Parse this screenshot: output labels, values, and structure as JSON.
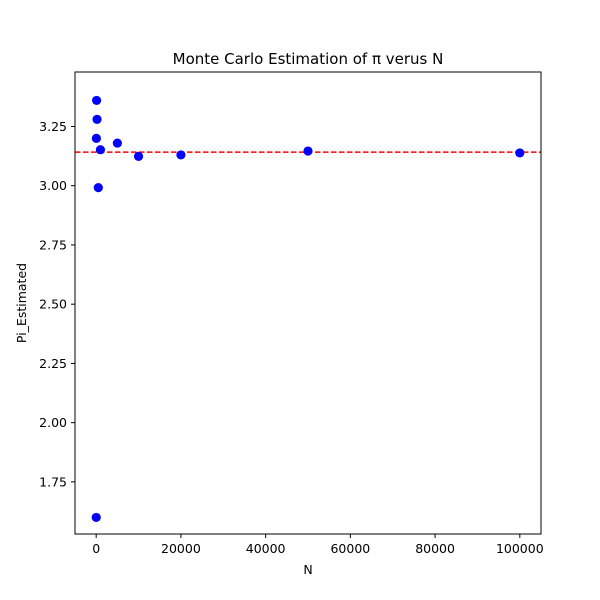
{
  "chart_data": {
    "type": "scatter",
    "title": "Monte Carlo Estimation of π verus N",
    "xlabel": "N",
    "ylabel": "Pi_Estimated",
    "xlim": [
      -5000,
      105000
    ],
    "ylim": [
      1.53,
      3.48
    ],
    "xticks": [
      0,
      20000,
      40000,
      60000,
      80000,
      100000
    ],
    "xtick_labels": [
      "0",
      "20000",
      "40000",
      "60000",
      "80000",
      "100000"
    ],
    "yticks": [
      1.75,
      2.0,
      2.25,
      2.5,
      2.75,
      3.0,
      3.25
    ],
    "ytick_labels": [
      "1.75",
      "2.00",
      "2.25",
      "2.50",
      "2.75",
      "3.00",
      "3.25"
    ],
    "grid": false,
    "legend": "none",
    "series": [
      {
        "marker_color": "#0000ff",
        "points": [
          {
            "x": 10,
            "y": 1.6
          },
          {
            "x": 50,
            "y": 3.2
          },
          {
            "x": 100,
            "y": 3.36
          },
          {
            "x": 200,
            "y": 3.28
          },
          {
            "x": 500,
            "y": 2.992
          },
          {
            "x": 1000,
            "y": 3.152
          },
          {
            "x": 5000,
            "y": 3.18
          },
          {
            "x": 10000,
            "y": 3.124
          },
          {
            "x": 20000,
            "y": 3.13
          },
          {
            "x": 50000,
            "y": 3.1464
          },
          {
            "x": 100000,
            "y": 3.1384
          }
        ]
      }
    ],
    "reference_line": {
      "y": 3.14159,
      "style": "dashed",
      "color": "#ff0000"
    }
  }
}
